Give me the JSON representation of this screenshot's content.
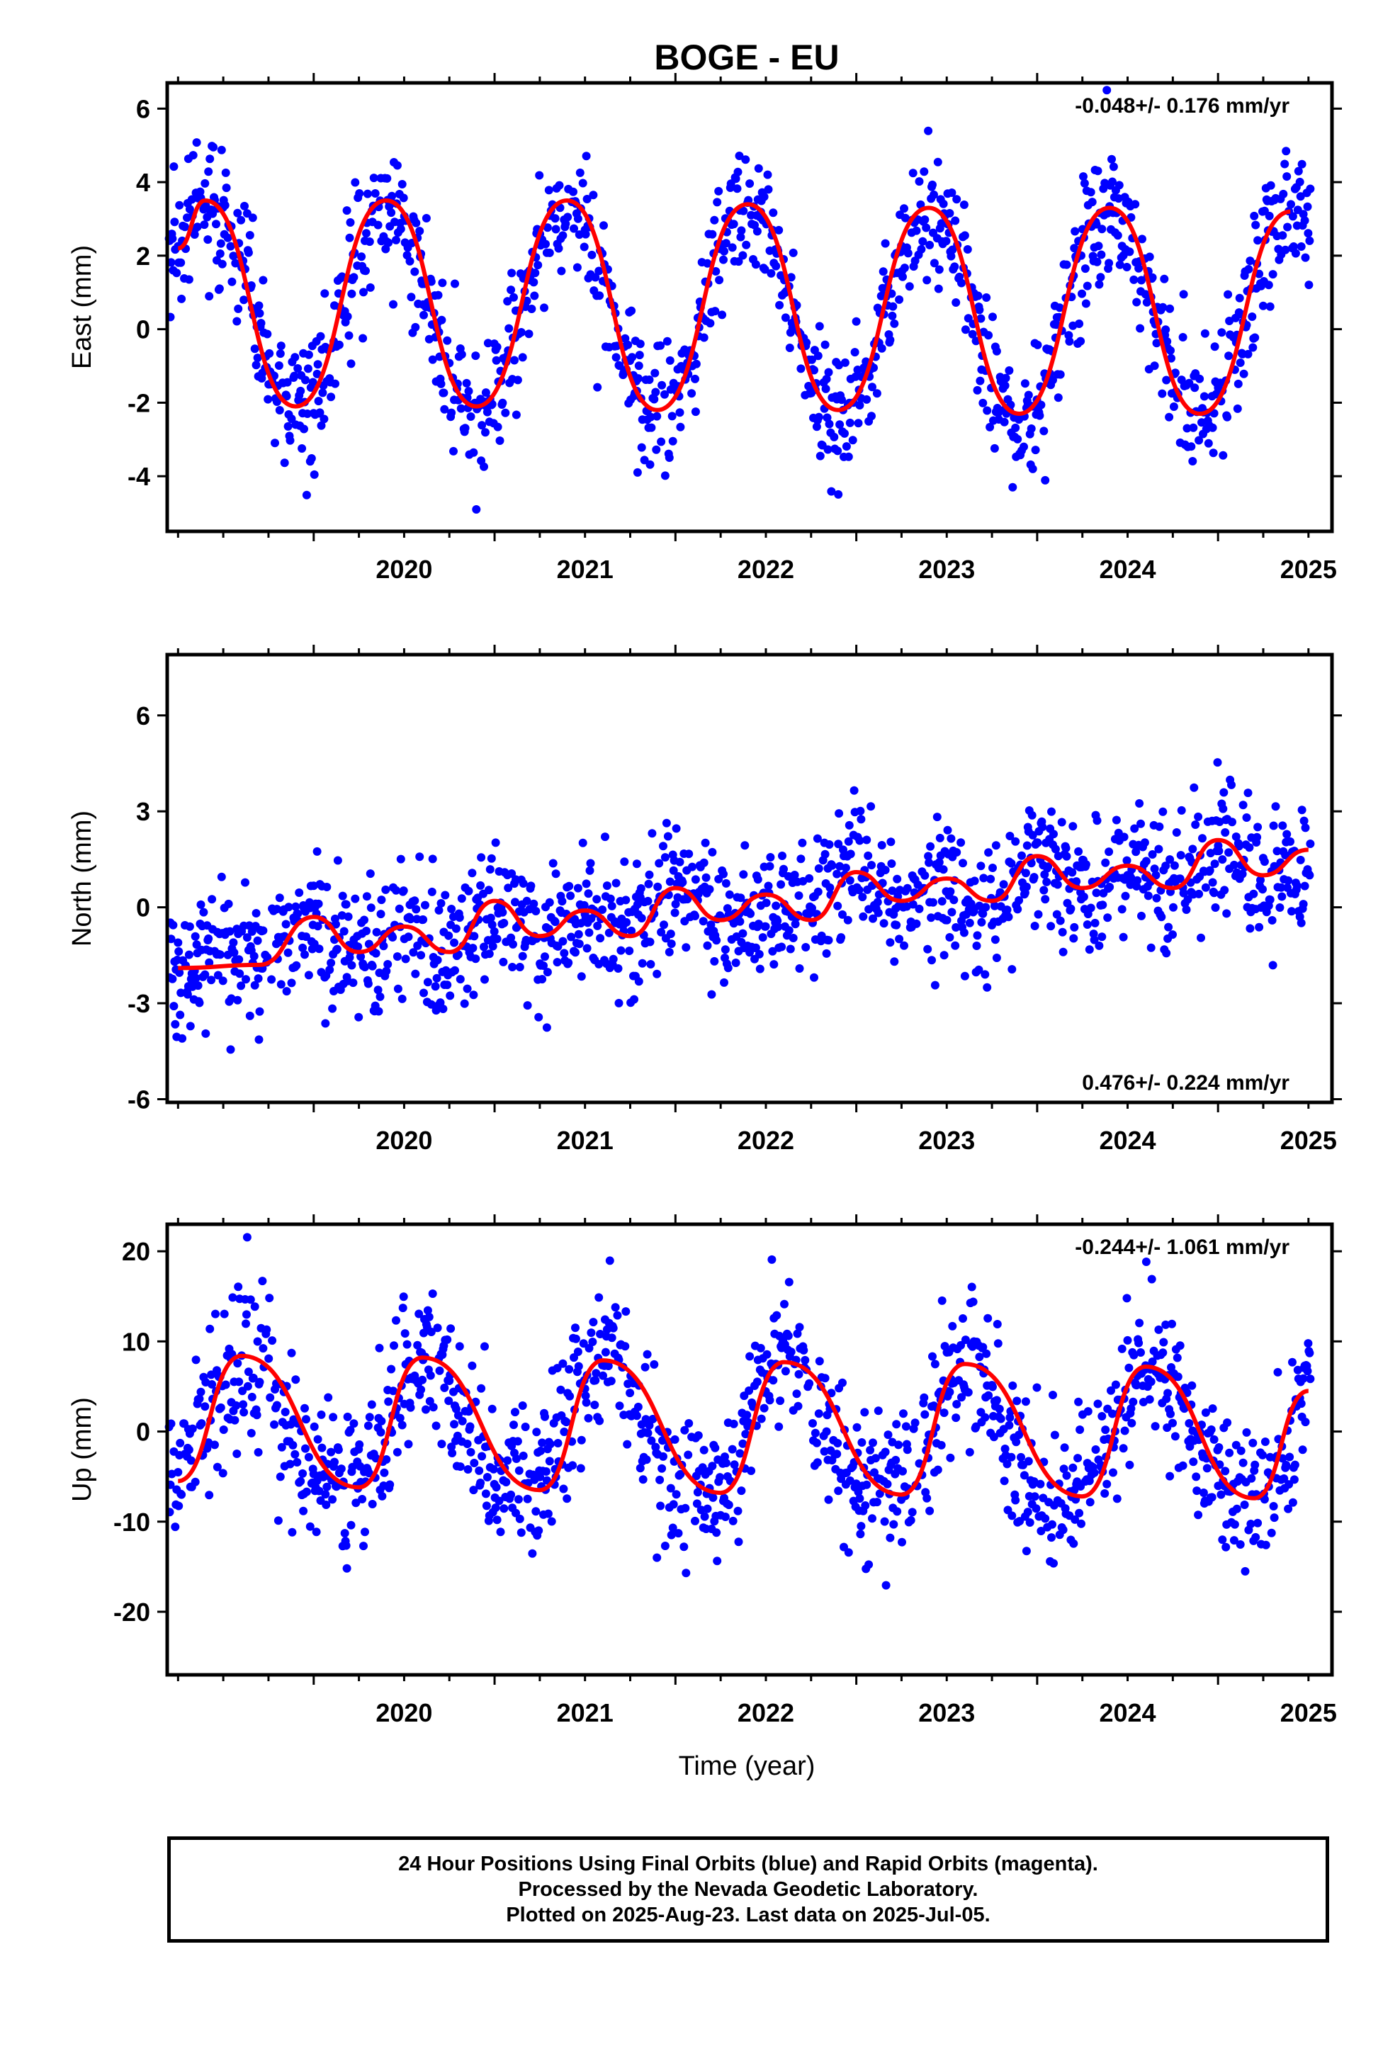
{
  "chart_data": {
    "type": "scatter",
    "title": "BOGE - EU",
    "xlabel": "Time (year)",
    "xlim": [
      2019.19,
      2025.63
    ],
    "x_ticks": [
      2020,
      2021,
      2022,
      2023,
      2024,
      2025
    ],
    "x_tick_labels": [
      "2020",
      "2021",
      "2022",
      "2023",
      "2024",
      "2025"
    ],
    "series_colors": {
      "final_orbits": "#0000ff",
      "model_fit": "#ff0000"
    },
    "panels": [
      {
        "id": "east",
        "ylabel": "East (mm)",
        "ylim": [
          -5.5,
          6.7
        ],
        "y_ticks": [
          -4,
          -2,
          0,
          2,
          4,
          6
        ],
        "rate_label": "-0.048+/- 0.176 mm/yr",
        "rate_position": "top-right",
        "model": {
          "offset": 0.6,
          "trend": -0.048,
          "annual_amp": 2.8,
          "annual_peak": 0.4,
          "semiannual_amp": 0.0,
          "semiannual_peak": 0.0,
          "scatter": 0.9
        },
        "fit_start_value": 2.2,
        "fit_peaks": [
          [
            2019.4,
            3.5
          ],
          [
            2020.4,
            3.5
          ],
          [
            2021.4,
            3.5
          ],
          [
            2022.4,
            3.4
          ],
          [
            2023.4,
            3.3
          ],
          [
            2024.4,
            3.3
          ],
          [
            2025.4,
            3.2
          ]
        ],
        "fit_troughs": [
          [
            2019.9,
            -2.1
          ],
          [
            2020.9,
            -2.1
          ],
          [
            2021.9,
            -2.2
          ],
          [
            2022.9,
            -2.2
          ],
          [
            2023.9,
            -2.3
          ],
          [
            2024.9,
            -2.3
          ]
        ]
      },
      {
        "id": "north",
        "ylabel": "North (mm)",
        "ylim": [
          -6.1,
          7.9
        ],
        "y_ticks": [
          -6,
          -3,
          0,
          3,
          6
        ],
        "rate_label": "0.476+/- 0.224 mm/yr",
        "rate_position": "bottom-right",
        "model": {
          "offset": -1.4,
          "trend": 0.476,
          "annual_amp": 0.35,
          "annual_peak": 0.0,
          "semiannual_amp": 0.45,
          "semiannual_peak": 0.0,
          "scatter": 1.05
        },
        "fit_start_value": -1.9,
        "fit_peaks": [
          [
            2020.0,
            -0.3
          ],
          [
            2020.5,
            -0.6
          ],
          [
            2021.0,
            0.2
          ],
          [
            2021.5,
            -0.1
          ],
          [
            2022.0,
            0.6
          ],
          [
            2022.5,
            0.4
          ],
          [
            2023.0,
            1.1
          ],
          [
            2023.5,
            0.9
          ],
          [
            2024.0,
            1.6
          ],
          [
            2024.5,
            1.3
          ],
          [
            2025.0,
            2.1
          ],
          [
            2025.5,
            1.8
          ]
        ],
        "fit_troughs": [
          [
            2019.7,
            -1.8
          ],
          [
            2020.25,
            -1.4
          ],
          [
            2020.75,
            -1.4
          ],
          [
            2021.25,
            -0.9
          ],
          [
            2021.75,
            -0.9
          ],
          [
            2022.25,
            -0.4
          ],
          [
            2022.75,
            -0.4
          ],
          [
            2023.25,
            0.2
          ],
          [
            2023.75,
            0.2
          ],
          [
            2024.25,
            0.6
          ],
          [
            2024.75,
            0.6
          ],
          [
            2025.25,
            1.0
          ]
        ]
      },
      {
        "id": "up",
        "ylabel": "Up (mm)",
        "ylim": [
          -27,
          23
        ],
        "y_ticks": [
          -20,
          -10,
          0,
          10,
          20
        ],
        "rate_label": "-0.244+/- 1.061 mm/yr",
        "rate_position": "top-right",
        "model": {
          "offset": 0.6,
          "trend": -0.244,
          "annual_amp": 7.2,
          "annual_peak": 0.62,
          "semiannual_amp": 1.2,
          "semiannual_peak": 0.1,
          "scatter": 4.2
        },
        "fit_start_value": -5.5,
        "fit_peaks": [
          [
            2019.6,
            8.4
          ],
          [
            2020.6,
            8.2
          ],
          [
            2021.6,
            7.9
          ],
          [
            2022.6,
            7.7
          ],
          [
            2023.6,
            7.5
          ],
          [
            2024.6,
            7.2
          ],
          [
            2025.5,
            4.5
          ]
        ],
        "fit_troughs": [
          [
            2020.25,
            -6.2
          ],
          [
            2021.25,
            -6.5
          ],
          [
            2022.25,
            -6.8
          ],
          [
            2023.25,
            -7.0
          ],
          [
            2024.25,
            -7.2
          ],
          [
            2025.2,
            -7.4
          ]
        ]
      }
    ]
  },
  "footer": {
    "line1": "24 Hour Positions Using Final Orbits (blue) and Rapid Orbits (magenta).",
    "line2": "Processed by the Nevada Geodetic Laboratory.",
    "line3": "Plotted on 2025-Aug-23. Last data on 2025-Jul-05."
  }
}
